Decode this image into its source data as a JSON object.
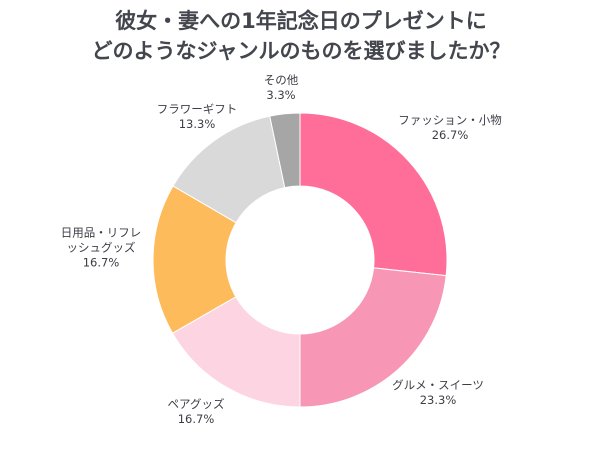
{
  "chart_data": {
    "type": "pie",
    "title_lines": [
      "彼女・妻への1年記念日のプレゼントに",
      "どのようなジャンルのものを選びましたか？"
    ],
    "donut": true,
    "slices": [
      {
        "label_lines": [
          "ファッション・小物"
        ],
        "value": 26.7,
        "pct_label": "26.7%",
        "color": "#fe6e99"
      },
      {
        "label_lines": [
          "グルメ・スイーツ"
        ],
        "value": 23.3,
        "pct_label": "23.3%",
        "color": "#f796b5"
      },
      {
        "label_lines": [
          "ペアグッズ"
        ],
        "value": 16.7,
        "pct_label": "16.7%",
        "color": "#fdd5e2"
      },
      {
        "label_lines": [
          "日用品・リフレ",
          "ッシュグッズ"
        ],
        "value": 16.7,
        "pct_label": "16.7%",
        "color": "#fdbb5b"
      },
      {
        "label_lines": [
          "フラワーギフト"
        ],
        "value": 13.3,
        "pct_label": "13.3%",
        "color": "#d9d9d9"
      },
      {
        "label_lines": [
          "その他"
        ],
        "value": 3.3,
        "pct_label": "3.3%",
        "color": "#a6a6a6"
      }
    ]
  }
}
